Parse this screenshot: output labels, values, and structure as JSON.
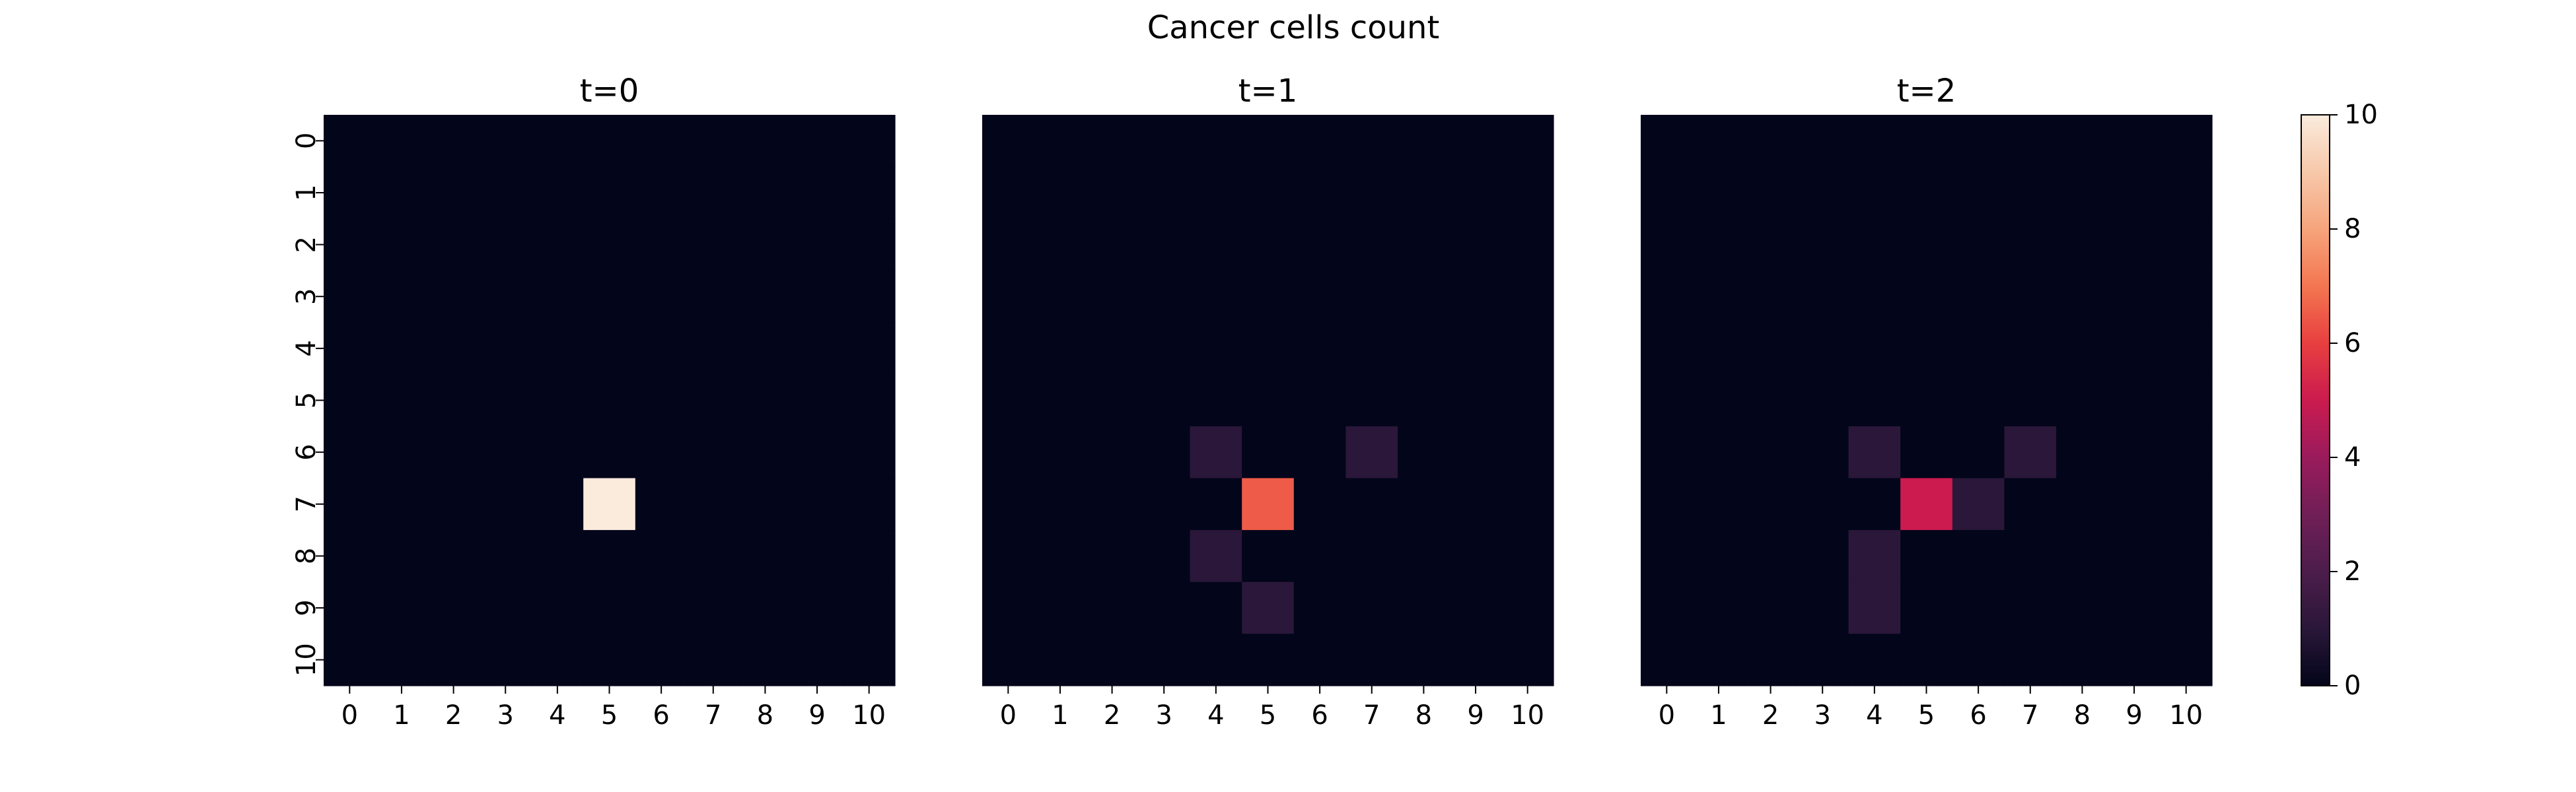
{
  "suptitle": "Cancer cells count",
  "chart_data": [
    {
      "type": "heatmap",
      "title": "t=0",
      "x": [
        0,
        1,
        2,
        3,
        4,
        5,
        6,
        7,
        8,
        9,
        10
      ],
      "y": [
        0,
        1,
        2,
        3,
        4,
        5,
        6,
        7,
        8,
        9,
        10
      ],
      "values": [
        [
          0,
          0,
          0,
          0,
          0,
          0,
          0,
          0,
          0,
          0,
          0
        ],
        [
          0,
          0,
          0,
          0,
          0,
          0,
          0,
          0,
          0,
          0,
          0
        ],
        [
          0,
          0,
          0,
          0,
          0,
          0,
          0,
          0,
          0,
          0,
          0
        ],
        [
          0,
          0,
          0,
          0,
          0,
          0,
          0,
          0,
          0,
          0,
          0
        ],
        [
          0,
          0,
          0,
          0,
          0,
          0,
          0,
          0,
          0,
          0,
          0
        ],
        [
          0,
          0,
          0,
          0,
          0,
          0,
          0,
          0,
          0,
          0,
          0
        ],
        [
          0,
          0,
          0,
          0,
          0,
          0,
          0,
          0,
          0,
          0,
          0
        ],
        [
          0,
          0,
          0,
          0,
          0,
          10,
          0,
          0,
          0,
          0,
          0
        ],
        [
          0,
          0,
          0,
          0,
          0,
          0,
          0,
          0,
          0,
          0,
          0
        ],
        [
          0,
          0,
          0,
          0,
          0,
          0,
          0,
          0,
          0,
          0,
          0
        ],
        [
          0,
          0,
          0,
          0,
          0,
          0,
          0,
          0,
          0,
          0,
          0
        ]
      ]
    },
    {
      "type": "heatmap",
      "title": "t=1",
      "x": [
        0,
        1,
        2,
        3,
        4,
        5,
        6,
        7,
        8,
        9,
        10
      ],
      "y": [
        0,
        1,
        2,
        3,
        4,
        5,
        6,
        7,
        8,
        9,
        10
      ],
      "values": [
        [
          0,
          0,
          0,
          0,
          0,
          0,
          0,
          0,
          0,
          0,
          0
        ],
        [
          0,
          0,
          0,
          0,
          0,
          0,
          0,
          0,
          0,
          0,
          0
        ],
        [
          0,
          0,
          0,
          0,
          0,
          0,
          0,
          0,
          0,
          0,
          0
        ],
        [
          0,
          0,
          0,
          0,
          0,
          0,
          0,
          0,
          0,
          0,
          0
        ],
        [
          0,
          0,
          0,
          0,
          0,
          0,
          0,
          0,
          0,
          0,
          0
        ],
        [
          0,
          0,
          0,
          0,
          0,
          0,
          0,
          0,
          0,
          0,
          0
        ],
        [
          0,
          0,
          0,
          0,
          1,
          0,
          0,
          1,
          0,
          0,
          0
        ],
        [
          0,
          0,
          0,
          0,
          0,
          6.5,
          0,
          0,
          0,
          0,
          0
        ],
        [
          0,
          0,
          0,
          0,
          1,
          0,
          0,
          0,
          0,
          0,
          0
        ],
        [
          0,
          0,
          0,
          0,
          0,
          1,
          0,
          0,
          0,
          0,
          0
        ],
        [
          0,
          0,
          0,
          0,
          0,
          0,
          0,
          0,
          0,
          0,
          0
        ]
      ]
    },
    {
      "type": "heatmap",
      "title": "t=2",
      "x": [
        0,
        1,
        2,
        3,
        4,
        5,
        6,
        7,
        8,
        9,
        10
      ],
      "y": [
        0,
        1,
        2,
        3,
        4,
        5,
        6,
        7,
        8,
        9,
        10
      ],
      "values": [
        [
          0,
          0,
          0,
          0,
          0,
          0,
          0,
          0,
          0,
          0,
          0
        ],
        [
          0,
          0,
          0,
          0,
          0,
          0,
          0,
          0,
          0,
          0,
          0
        ],
        [
          0,
          0,
          0,
          0,
          0,
          0,
          0,
          0,
          0,
          0,
          0
        ],
        [
          0,
          0,
          0,
          0,
          0,
          0,
          0,
          0,
          0,
          0,
          0
        ],
        [
          0,
          0,
          0,
          0,
          0,
          0,
          0,
          0,
          0,
          0,
          0
        ],
        [
          0,
          0,
          0,
          0,
          0,
          0,
          0,
          0,
          0,
          0,
          0
        ],
        [
          0,
          0,
          0,
          0,
          1,
          0,
          0,
          1,
          0,
          0,
          0
        ],
        [
          0,
          0,
          0,
          0,
          0,
          5,
          1,
          0,
          0,
          0,
          0
        ],
        [
          0,
          0,
          0,
          0,
          1,
          0,
          0,
          0,
          0,
          0,
          0
        ],
        [
          0,
          0,
          0,
          0,
          1,
          0,
          0,
          0,
          0,
          0,
          0
        ],
        [
          0,
          0,
          0,
          0,
          0,
          0,
          0,
          0,
          0,
          0,
          0
        ]
      ]
    }
  ],
  "colorbar": {
    "colormap": "rocket",
    "range": [
      0,
      10
    ],
    "ticks": [
      0,
      2,
      4,
      6,
      8,
      10
    ],
    "stops": [
      "#03051a",
      "#2a1739",
      "#4c1d4b",
      "#701f57",
      "#9a1b5c",
      "#cb1b4f",
      "#e83f3f",
      "#f37651",
      "#f6a47c",
      "#f7c8aa",
      "#faebdd"
    ]
  }
}
